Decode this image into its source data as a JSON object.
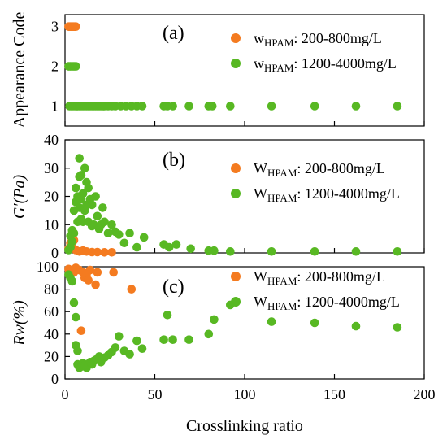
{
  "colors": {
    "low": "#f47b20",
    "high": "#58b823"
  },
  "shared_x": {
    "label": "Crosslinking ratio",
    "xlim": [
      0,
      200
    ],
    "ticks": [
      0,
      50,
      100,
      150,
      200
    ]
  },
  "chart_data": [
    {
      "type": "scatter",
      "panel_label": "(a)",
      "ylabel": "Appearance Code",
      "xlabel": "Crosslinking ratio",
      "xlim": [
        0,
        200
      ],
      "ylim": [
        0.5,
        3.3
      ],
      "yticks": [
        1,
        2,
        3
      ],
      "legend_position": "right",
      "series": [
        {
          "name": "W_HPAM: 200-800mg/L",
          "legend_main": "w",
          "legend_sub": "HPAM",
          "legend_rest": ": 200-800mg/L",
          "color_key": "low",
          "x": [
            2,
            2.5,
            3,
            3.5,
            4,
            4.5,
            5,
            5.5,
            6
          ],
          "y": [
            3,
            3,
            3,
            3,
            3,
            3,
            3,
            3,
            3
          ]
        },
        {
          "name": "W_HPAM: 1200-4000mg/L",
          "legend_main": "w",
          "legend_sub": "HPAM",
          "legend_rest": ": 1200-4000mg/L",
          "color_key": "high",
          "x": [
            2,
            3,
            4,
            5,
            6,
            2.5,
            3.5,
            4.5,
            5.5,
            6.5,
            7,
            8,
            9,
            10,
            11,
            12,
            13,
            14,
            15,
            16,
            17,
            18,
            19,
            20,
            21,
            22,
            24,
            26,
            28,
            31,
            34,
            37,
            40,
            43,
            55,
            57,
            60,
            69,
            80,
            82,
            92,
            115,
            139,
            162,
            185
          ],
          "y": [
            2,
            2,
            2,
            2,
            2,
            1,
            1,
            1,
            1,
            1,
            1,
            1,
            1,
            1,
            1,
            1,
            1,
            1,
            1,
            1,
            1,
            1,
            1,
            1,
            1,
            1,
            1,
            1,
            1,
            1,
            1,
            1,
            1,
            1,
            1,
            1,
            1,
            1,
            1,
            1,
            1,
            1,
            1,
            1,
            1
          ]
        }
      ]
    },
    {
      "type": "scatter",
      "panel_label": "(b)",
      "ylabel": "G′(Pa)",
      "xlabel": "Crosslinking ratio",
      "xlim": [
        0,
        200
      ],
      "ylim": [
        0,
        40
      ],
      "yticks": [
        0,
        10,
        20,
        30,
        40
      ],
      "legend_position": "right",
      "series": [
        {
          "name": "W_HPAM: 200-800mg/L",
          "legend_main": "W",
          "legend_sub": "HPAM",
          "legend_rest": ": 200-800mg/L",
          "color_key": "low",
          "x": [
            2,
            3,
            4,
            5,
            6,
            8,
            10,
            12,
            15,
            18,
            22,
            26
          ],
          "y": [
            1.5,
            3.5,
            2,
            4.5,
            1,
            0.5,
            0.8,
            0.5,
            0.3,
            0.3,
            0.2,
            0.2
          ],
          "show_in_legend": true
        },
        {
          "name": "W_HPAM: 1200-4000mg/L",
          "legend_main": "W",
          "legend_sub": "HPAM",
          "legend_rest": ": 1200-4000mg/L",
          "color_key": "high",
          "x": [
            2,
            3,
            3,
            4,
            4,
            5,
            5,
            6,
            6,
            7,
            7,
            8,
            8,
            8,
            9,
            9,
            9,
            10,
            10,
            11,
            11,
            12,
            12,
            13,
            13,
            14,
            15,
            15,
            16,
            17,
            18,
            19,
            20,
            21,
            22,
            24,
            26,
            28,
            30,
            33,
            36,
            40,
            44,
            55,
            58,
            62,
            70,
            80,
            83,
            92,
            115,
            139,
            162,
            185
          ],
          "y": [
            1,
            2,
            6,
            4,
            8,
            7,
            15,
            18,
            23,
            11,
            20,
            16,
            27,
            33.5,
            12,
            19,
            27.5,
            11,
            21,
            15,
            30,
            17,
            25,
            11,
            23,
            19,
            9.5,
            17,
            10,
            20,
            13,
            8.5,
            10,
            16,
            11,
            7,
            10,
            7.5,
            6.5,
            3.5,
            7,
            2,
            5.5,
            3,
            2,
            3,
            1.5,
            0.8,
            0.8,
            0.5,
            0.5,
            0.5,
            0.5,
            0.5
          ]
        }
      ]
    },
    {
      "type": "scatter",
      "panel_label": "(c)",
      "ylabel": "Rw(%)",
      "xlabel": "Crosslinking ratio",
      "xlim": [
        0,
        200
      ],
      "ylim": [
        0,
        100
      ],
      "yticks": [
        0,
        20,
        40,
        60,
        80,
        100
      ],
      "legend_position": "right",
      "series": [
        {
          "name": "W_HPAM: 200-800mg/L",
          "legend_main": "W",
          "legend_sub": "HPAM",
          "legend_rest": ": 200-800mg/L",
          "color_key": "low",
          "x": [
            2,
            3,
            4,
            5,
            6,
            8,
            9,
            10,
            11,
            12,
            13,
            14,
            17,
            18,
            27,
            37
          ],
          "y": [
            98,
            97,
            96,
            95,
            99,
            97,
            43,
            95,
            90,
            93,
            88,
            97,
            84,
            95,
            95,
            80
          ]
        },
        {
          "name": "W_HPAM: 1200-4000mg/L",
          "legend_main": "W",
          "legend_sub": "HPAM",
          "legend_rest": ": 1200-4000mg/L",
          "color_key": "high",
          "x": [
            2,
            3,
            4,
            5,
            6,
            6,
            7,
            7,
            8,
            8,
            9,
            10,
            11,
            12,
            13,
            14,
            15,
            16,
            17,
            18,
            19,
            20,
            22,
            24,
            26,
            28,
            30,
            33,
            36,
            40,
            43,
            55,
            57,
            60,
            69,
            80,
            83,
            92,
            115,
            139,
            162,
            185
          ],
          "y": [
            93,
            90,
            87,
            68,
            55,
            30,
            25,
            13,
            12,
            10,
            11,
            14,
            12,
            10,
            13,
            15,
            13,
            16,
            17,
            18,
            20,
            15,
            19,
            21,
            24,
            28,
            38,
            25,
            22,
            34,
            27,
            35,
            57,
            35,
            35,
            40,
            53,
            66,
            51,
            50,
            47,
            46
          ]
        }
      ]
    }
  ]
}
